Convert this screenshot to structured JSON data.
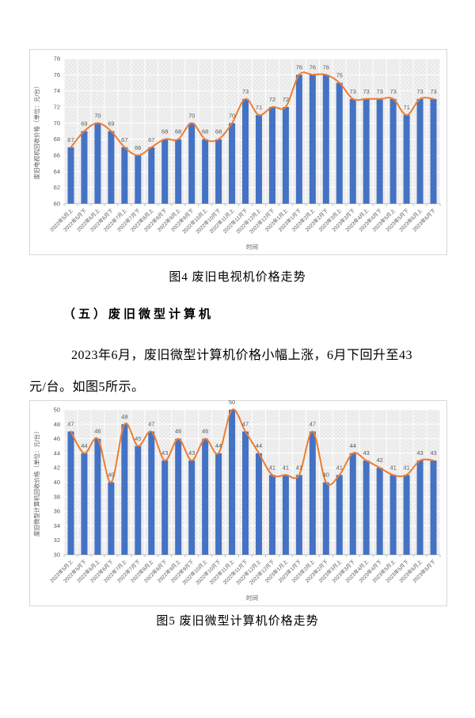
{
  "figure4": {
    "caption": "图4 废旧电视机价格走势"
  },
  "section": {
    "heading": "（五）废旧微型计算机",
    "paragraph_line1": "2023年6月，废旧微型计算机价格小幅上涨，6月下回升至43",
    "paragraph_line2": "元/台。如图5所示。"
  },
  "figure5": {
    "caption": "图5 废旧微型计算机价格走势"
  },
  "colors": {
    "bar": "#4472C4",
    "line": "#ED7D31",
    "axis_text": "#595959",
    "chart_border": "#D9D9D9",
    "plot_fill": "#F2F2F2",
    "plot_hatch": "#E4E4E4",
    "gridline": "#FFFFFF"
  },
  "chart_data": [
    {
      "type": "bar",
      "title": "",
      "ylabel": "废旧电视机回收价格（单位：元/台）",
      "xlabel": "时间",
      "ylim": [
        60,
        78
      ],
      "ytick_step": 2,
      "grid": true,
      "legend": "none",
      "categories": [
        "2022年5月上",
        "2022年5月下",
        "2022年6月上",
        "2022年6月下",
        "2022年7月上",
        "2022年7月下",
        "2022年8月上",
        "2022年8月下",
        "2022年9月上",
        "2022年9月下",
        "2022年10月上",
        "2022年10月下",
        "2022年11月上",
        "2022年11月下",
        "2022年12月上",
        "2022年12月下",
        "2023年1月上",
        "2023年1月下",
        "2023年2月上",
        "2023年2月下",
        "2023年3月上",
        "2023年3月下",
        "2023年4月上",
        "2023年4月下",
        "2023年5月上",
        "2023年5月下",
        "2023年6月上",
        "2023年6月下"
      ],
      "series": [
        {
          "name": "bars",
          "type": "bar",
          "values": [
            67,
            69,
            70,
            69,
            67,
            66,
            67,
            68,
            68,
            70,
            68,
            68,
            70,
            73,
            71,
            72,
            72,
            76,
            76,
            76,
            75,
            73,
            73,
            73,
            73,
            71,
            73,
            73
          ]
        },
        {
          "name": "line",
          "type": "line",
          "values": [
            67,
            69,
            70,
            69,
            67,
            66,
            67,
            68,
            68,
            70,
            68,
            68,
            70,
            73,
            71,
            72,
            72,
            76,
            76,
            76,
            75,
            73,
            73,
            73,
            73,
            71,
            73,
            73
          ]
        }
      ],
      "data_labels": [
        67,
        69,
        70,
        69,
        67,
        66,
        67,
        68,
        68,
        70,
        68,
        68,
        70,
        73,
        71,
        72,
        72,
        76,
        76,
        76,
        75,
        73,
        73,
        73,
        73,
        71,
        73,
        73
      ]
    },
    {
      "type": "bar",
      "title": "",
      "ylabel": "废旧微型计算机回收价格（单位：元/台）",
      "xlabel": "时间",
      "ylim": [
        30,
        50
      ],
      "ytick_step": 2,
      "grid": true,
      "legend": "none",
      "categories": [
        "2022年5月上",
        "2022年5月下",
        "2022年6月上",
        "2022年6月下",
        "2022年7月上",
        "2022年7月下",
        "2022年8月上",
        "2022年8月下",
        "2022年9月上",
        "2022年9月下",
        "2022年10月上",
        "2022年10月下",
        "2022年11月上",
        "2022年11月下",
        "2022年12月上",
        "2022年12月下",
        "2023年1月上",
        "2023年1月下",
        "2023年2月上",
        "2023年2月下",
        "2023年3月上",
        "2023年3月下",
        "2023年4月上",
        "2023年4月下",
        "2023年5月上",
        "2023年5月下",
        "2023年6月上",
        "2023年6月下"
      ],
      "series": [
        {
          "name": "bars",
          "type": "bar",
          "values": [
            47,
            44,
            46,
            40,
            48,
            45,
            47,
            43,
            46,
            43,
            46,
            44,
            50,
            47,
            44,
            41,
            41,
            41,
            47,
            40,
            41,
            44,
            43,
            42,
            41,
            41,
            43,
            43
          ]
        },
        {
          "name": "line",
          "type": "line",
          "values": [
            47,
            44,
            46,
            40,
            48,
            45,
            47,
            43,
            46,
            43,
            46,
            44,
            50,
            47,
            44,
            41,
            41,
            41,
            47,
            40,
            41,
            44,
            43,
            42,
            41,
            41,
            43,
            43
          ]
        }
      ],
      "data_labels": [
        47,
        44,
        46,
        40,
        48,
        45,
        47,
        43,
        46,
        43,
        46,
        44,
        50,
        47,
        44,
        41,
        41,
        41,
        47,
        40,
        41,
        44,
        43,
        42,
        41,
        41,
        43,
        43
      ]
    }
  ]
}
